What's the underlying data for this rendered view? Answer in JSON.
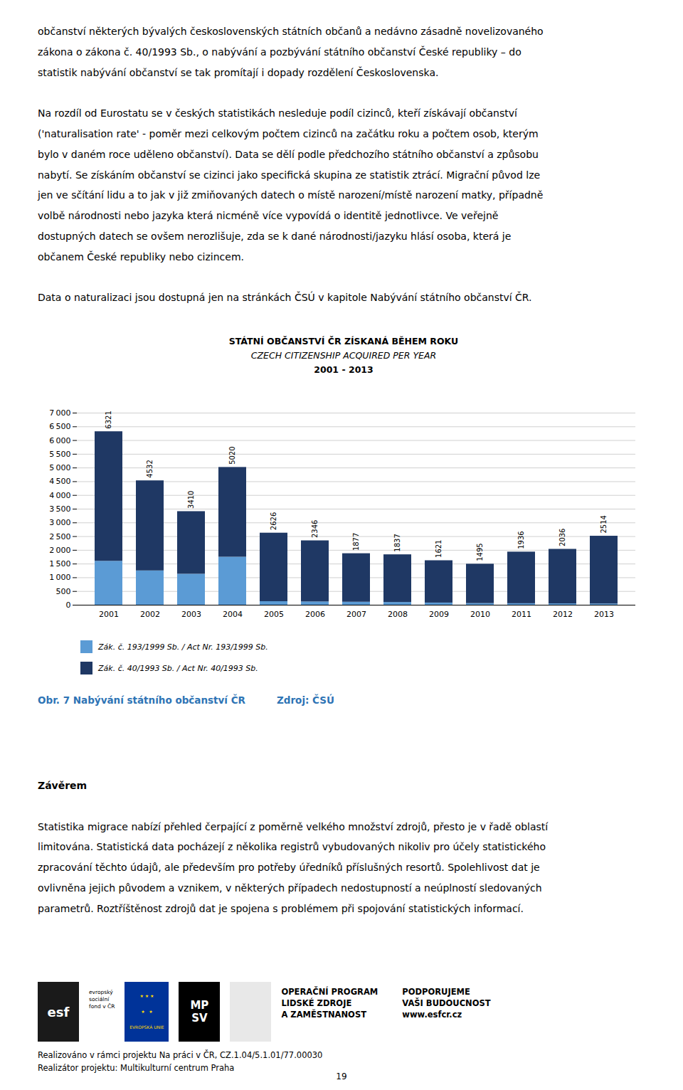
{
  "page_text_top": [
    [
      "občanství některých bývalých československých státních občanů a nedávno zásadně novelizovaného",
      "zákona o zákona č. 40/1993 Sb., o nabývání a pozbývání státního občanství České republiky – do",
      "statistik nabývání občanství se tak promítají i dopady rozdělení Československa."
    ],
    [
      "Na rozdíl od Eurostatu se v českých statistikách nesleduje podíl cizinců, kteří získávají občanství",
      "('naturalisation rate' - poměr mezi celkovým počtem cizinců na začátku roku a počtem osob, kterým",
      "bylo v daném roce uděleno občanství). Data se dělí podle předchozího státního občanství a způsobu",
      "nabytí. Se získáním občanství se cizinci jako specifická skupina ze statistik ztrácí. Migrační původ lze",
      "jen ve sčítání lidu a to jak v již zmiňovaných datech o místě narození/místě narození matky, případně",
      "volbě národnosti nebo jazyka která nicméně více vypovídá o identitě jednotlivce. Ve veřejně",
      "dostupných datech se ovšem nerozlišuje, zda se k dané národnosti/jazyku hlásí osoba, která je",
      "občanem České republiky nebo cizincem."
    ],
    [
      "Data o naturalizaci jsou dostupná jen na stránkách ČSÚ v kapitole Nabývání státního občanství ČR."
    ]
  ],
  "chart_data": {
    "type": "bar",
    "stacked": true,
    "title": "STÁTNÍ OBČANSTVÍ ČR ZÍSKANÁ BĚHEM ROKU",
    "subtitle": [
      "CZECH CITIZENSHIP ACQUIRED PER YEAR",
      "2001 - 2013"
    ],
    "categories": [
      "2001",
      "2002",
      "2003",
      "2004",
      "2005",
      "2006",
      "2007",
      "2008",
      "2009",
      "2010",
      "2011",
      "2012",
      "2013"
    ],
    "series": [
      {
        "name": "Zák. č. 193/1999 Sb. / Act Nr. 193/1999 Sb.",
        "color": "#5B9BD5",
        "values": [
          1600,
          1250,
          1130,
          1750,
          130,
          120,
          110,
          100,
          80,
          60,
          55,
          50,
          45
        ]
      },
      {
        "name": "Zák. č. 40/1993 Sb. / Act Nr. 40/1993 Sb.",
        "color": "#1F3864",
        "values": [
          4721,
          3282,
          2280,
          3270,
          2496,
          2226,
          1767,
          1737,
          1541,
          1435,
          1881,
          1986,
          2469
        ]
      }
    ],
    "data_labels": true,
    "totals": [
      6321,
      4532,
      3410,
      5020,
      2626,
      2346,
      1877,
      1837,
      1621,
      1495,
      1936,
      2036,
      2514
    ],
    "ylim": [
      0,
      7000
    ],
    "yticks": [
      0,
      500,
      {
        "value": 1000,
        "label": "1 000"
      },
      {
        "value": 1500,
        "label": "1 500"
      },
      {
        "value": 2000,
        "label": "2 000"
      },
      {
        "value": 2500,
        "label": "2 500"
      },
      {
        "value": 3000,
        "label": "3 000"
      },
      {
        "value": 3500,
        "label": "3 500"
      },
      {
        "value": 4000,
        "label": "4 000"
      },
      {
        "value": 4500,
        "label": "4 500"
      },
      {
        "value": 5000,
        "label": "5 000"
      },
      {
        "value": 5500,
        "label": "5 500"
      },
      {
        "value": 6000,
        "label": "6 000"
      },
      {
        "value": 6500,
        "label": "6 500"
      },
      {
        "value": 7000,
        "label": "7 000"
      }
    ],
    "grid": true,
    "legend": "bottom",
    "caption": "Obr. 7 Nabývání státního občanství ČR",
    "source": "Zdroj: ČSÚ"
  },
  "page_text_bottom": {
    "heading": "Závěrem",
    "lines": [
      "Statistika migrace nabízí přehled čerpající z poměrně velkého množství zdrojů, přesto je v řadě oblastí",
      "limitována. Statistická data pocházejí z několika registrů vybudovaných nikoliv pro účely statistického",
      "zpracování těchto údajů, ale především pro potřeby úředníků příslušných resortů. Spolehlivost dat je",
      "ovlivněna jejich původem a vznikem, v některých případech nedostupností a neúplností sledovaných",
      "parametrů. Roztříštěnost zdrojů dat je spojena s problémem při spojování statistických informací."
    ]
  },
  "footer": {
    "logo_texts": [
      "esf",
      "evropský\nsociální\nfond v ČR",
      "★ ★ ★\n★   ★\nEVROPSKÁ UNIE",
      "MP\nSV",
      "OPERAČNÍ PROGRAM\nLIDSKÉ ZDROJE\nA ZAMĚSTNANOST",
      "PODPORUJEME\nVAŠI BUDOUCNOST\nwww.esfcr.cz"
    ],
    "lines": [
      "Realizováno v rámci projektu Na práci v ČR, CZ.1.04/5.1.01/77.00030",
      "Realizátor projektu: Multikulturní centrum Praha"
    ],
    "page_number": "19"
  }
}
